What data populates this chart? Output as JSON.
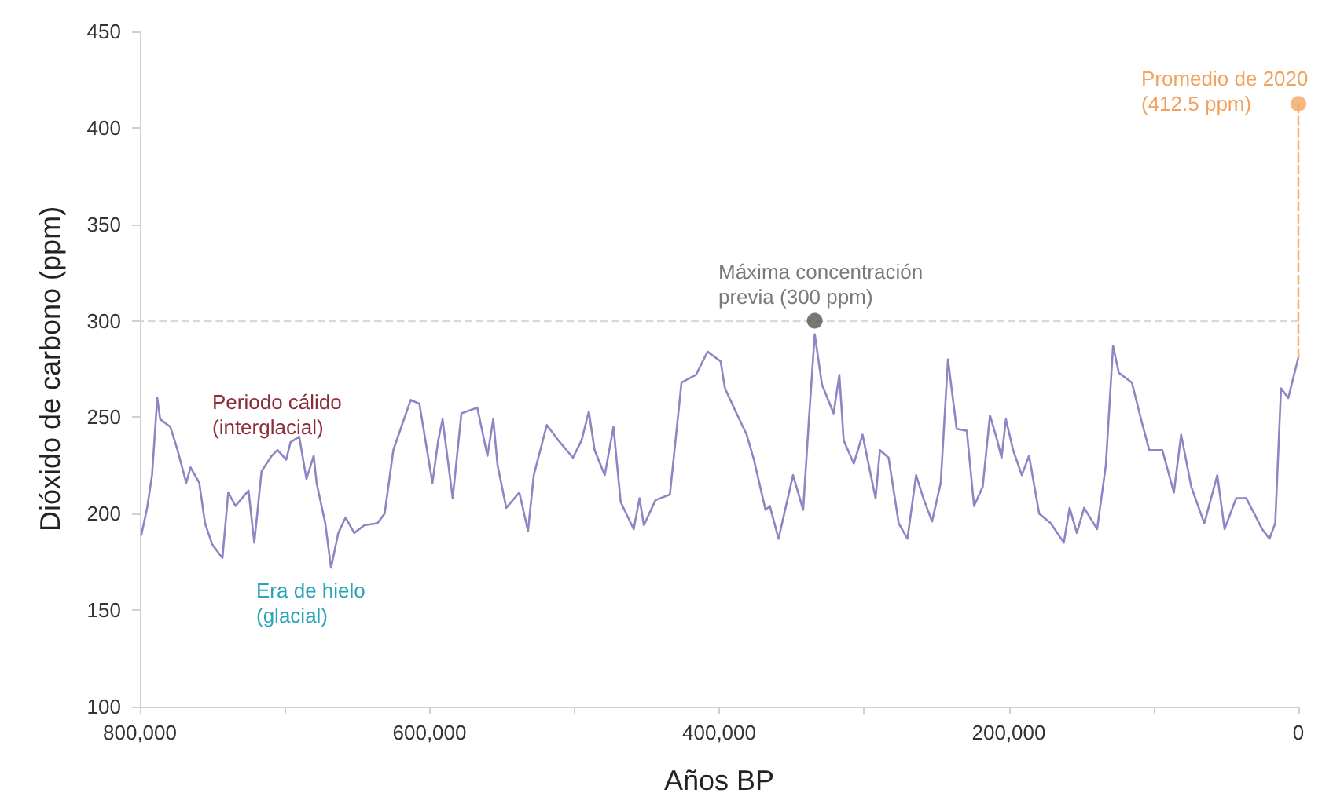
{
  "chart_data": {
    "type": "line",
    "xlabel": "Años BP",
    "ylabel": "Dióxido de carbono (ppm)",
    "xlim": [
      800000,
      0
    ],
    "ylim": [
      100,
      450
    ],
    "xticks": [
      {
        "value": 800000,
        "label": "800,000"
      },
      {
        "value": 700000,
        "label": null
      },
      {
        "value": 600000,
        "label": "600,000"
      },
      {
        "value": 500000,
        "label": null
      },
      {
        "value": 400000,
        "label": "400,000"
      },
      {
        "value": 300000,
        "label": null
      },
      {
        "value": 200000,
        "label": "200,000"
      },
      {
        "value": 100000,
        "label": null
      },
      0
    ],
    "yticks": [
      100,
      150,
      200,
      250,
      300,
      350,
      400,
      450
    ],
    "grid": false,
    "marker": "none",
    "line_style": "solid",
    "ref_lines": [
      {
        "axis": "y",
        "value": 300,
        "color": "#d9d9d9",
        "line_style": "dashed"
      }
    ],
    "annotations": [
      "Periodo cálido\n(interglacial)",
      "Era de hielo\n(glacial)",
      "Máxima concentración\nprevia (300 ppm)",
      "Promedio de 2020\n(412.5 ppm)"
    ],
    "series": [
      {
        "color": "#8c87c4",
        "x": [
          799000,
          795000,
          791600,
          788000,
          786000,
          779000,
          774000,
          768000,
          765000,
          759000,
          755000,
          750000,
          743000,
          739000,
          734000,
          725000,
          721000,
          716000,
          709000,
          705000,
          699000,
          696000,
          690000,
          685000,
          680000,
          678000,
          672000,
          668000,
          663000,
          658000,
          652000,
          645000,
          636000,
          631000,
          625000,
          613000,
          607000,
          598000,
          594000,
          591000,
          584000,
          578000,
          567000,
          560000,
          556000,
          553000,
          547000,
          538000,
          532000,
          528000,
          519000,
          511000,
          501000,
          495000,
          490000,
          486000,
          479000,
          473000,
          468000,
          459000,
          455000,
          452000,
          444000,
          434000,
          426000,
          416000,
          408000,
          399000,
          396000,
          388000,
          381000,
          376000,
          368000,
          365000,
          359000,
          349000,
          342000,
          338000,
          334000,
          329000,
          321000,
          317000,
          314000,
          307000,
          301000,
          292000,
          289000,
          283000,
          276000,
          270000,
          264000,
          259000,
          253000,
          247000,
          242000,
          236000,
          229000,
          224000,
          218000,
          213000,
          208000,
          205000,
          202000,
          197000,
          191000,
          186000,
          179000,
          171000,
          162000,
          158000,
          153000,
          148000,
          139000,
          133000,
          128000,
          124000,
          115000,
          108000,
          103000,
          94000,
          86000,
          81000,
          74000,
          65000,
          56000,
          51000,
          43000,
          36000,
          25000,
          20000,
          16000,
          12000,
          7000,
          0
        ],
        "values": [
          189,
          203,
          220,
          260,
          249,
          245,
          233,
          216,
          224,
          216,
          195,
          184,
          177,
          211,
          204,
          212,
          185,
          222,
          230,
          233,
          228,
          237,
          240,
          218,
          230,
          216,
          195,
          172,
          190,
          198,
          190,
          194,
          195,
          200,
          233,
          259,
          257,
          216,
          238,
          249,
          208,
          252,
          255,
          230,
          249,
          225,
          203,
          211,
          191,
          220,
          246,
          238,
          229,
          238,
          253,
          233,
          220,
          245,
          206,
          192,
          208,
          194,
          207,
          210,
          268,
          272,
          284,
          279,
          265,
          252,
          241,
          228,
          202,
          204,
          187,
          220,
          202,
          249,
          293,
          267,
          252,
          272,
          238,
          226,
          241,
          208,
          233,
          229,
          195,
          187,
          220,
          208,
          196,
          216,
          280,
          244,
          243,
          204,
          214,
          251,
          238,
          229,
          249,
          233,
          220,
          230,
          200,
          195,
          185,
          203,
          190,
          203,
          192,
          225,
          287,
          273,
          268,
          247,
          233,
          233,
          211,
          241,
          214,
          195,
          220,
          192,
          208,
          208,
          192,
          187,
          195,
          265,
          260,
          281
        ]
      },
      {
        "type": "line",
        "color": "#f5b27a",
        "line_style": "dashed",
        "x": [
          0,
          0
        ],
        "values": [
          281,
          412.5
        ]
      },
      {
        "type": "scatter",
        "color": "#555555",
        "marker": "circle",
        "x": [
          334000
        ],
        "values": [
          300
        ]
      },
      {
        "type": "scatter",
        "color": "#f5a560",
        "marker": "circle",
        "x": [
          0
        ],
        "values": [
          412.5
        ]
      }
    ]
  }
}
